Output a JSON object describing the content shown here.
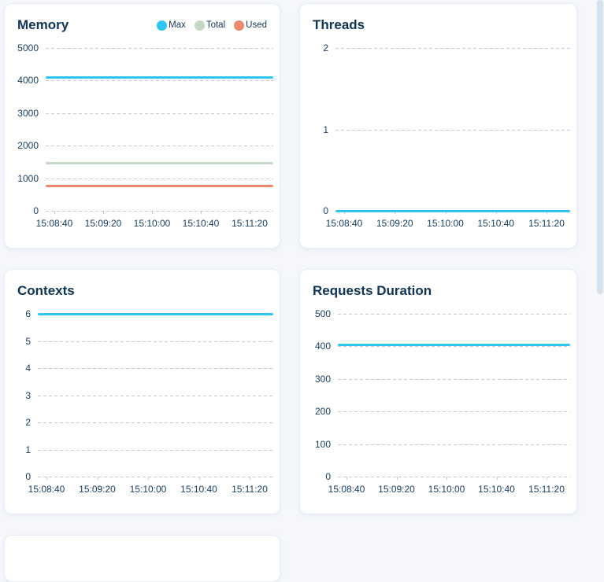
{
  "app": {
    "background_color": "#f5f7fb",
    "card_color": "#ffffff",
    "accent_color": "#2fc6f4",
    "text_color": "#0e3456"
  },
  "chart_data": [
    {
      "type": "line",
      "title": "Memory",
      "categories": [
        "15:08:40",
        "15:09:20",
        "15:10:00",
        "15:10:40",
        "15:11:20"
      ],
      "yticks": [
        0,
        1000,
        2000,
        3000,
        4000,
        5000
      ],
      "ylim": [
        0,
        5000
      ],
      "grid": "horizontal-dashed",
      "legend_position": "top-right",
      "legend": [
        {
          "label": "Max",
          "color": "#2fc6f4"
        },
        {
          "label": "Total",
          "color": "#c4d9c5"
        },
        {
          "label": "Used",
          "color": "#ed8a6e"
        }
      ],
      "series": [
        {
          "name": "Max",
          "color": "#2fc6f4",
          "values": [
            4100,
            4100,
            4100,
            4100,
            4100
          ]
        },
        {
          "name": "Total",
          "color": "#c4d9c5",
          "values": [
            1450,
            1450,
            1450,
            1450,
            1450
          ]
        },
        {
          "name": "Used",
          "color": "#ed8a6e",
          "values": [
            760,
            760,
            760,
            760,
            760
          ]
        }
      ]
    },
    {
      "type": "line",
      "title": "Threads",
      "categories": [
        "15:08:40",
        "15:09:20",
        "15:10:00",
        "15:10:40",
        "15:11:20"
      ],
      "yticks": [
        0,
        1,
        2
      ],
      "ylim": [
        0,
        2
      ],
      "grid": "horizontal-dashed",
      "series": [
        {
          "name": "",
          "color": "#2fc6f4",
          "values": [
            0,
            0,
            0,
            0,
            0
          ]
        }
      ]
    },
    {
      "type": "line",
      "title": "Contexts",
      "categories": [
        "15:08:40",
        "15:09:20",
        "15:10:00",
        "15:10:40",
        "15:11:20"
      ],
      "yticks": [
        0,
        1,
        2,
        3,
        4,
        5,
        6
      ],
      "ylim": [
        0,
        6
      ],
      "grid": "horizontal-dashed",
      "series": [
        {
          "name": "",
          "color": "#2fc6f4",
          "values": [
            6,
            6,
            6,
            6,
            6
          ]
        }
      ]
    },
    {
      "type": "line",
      "title": "Requests Duration",
      "categories": [
        "15:08:40",
        "15:09:20",
        "15:10:00",
        "15:10:40",
        "15:11:20"
      ],
      "yticks": [
        0,
        100,
        200,
        300,
        400,
        500
      ],
      "ylim": [
        0,
        500
      ],
      "grid": "horizontal-dashed",
      "series": [
        {
          "name": "",
          "color": "#2fc6f4",
          "values": [
            405,
            405,
            405,
            405,
            405
          ]
        }
      ]
    }
  ]
}
